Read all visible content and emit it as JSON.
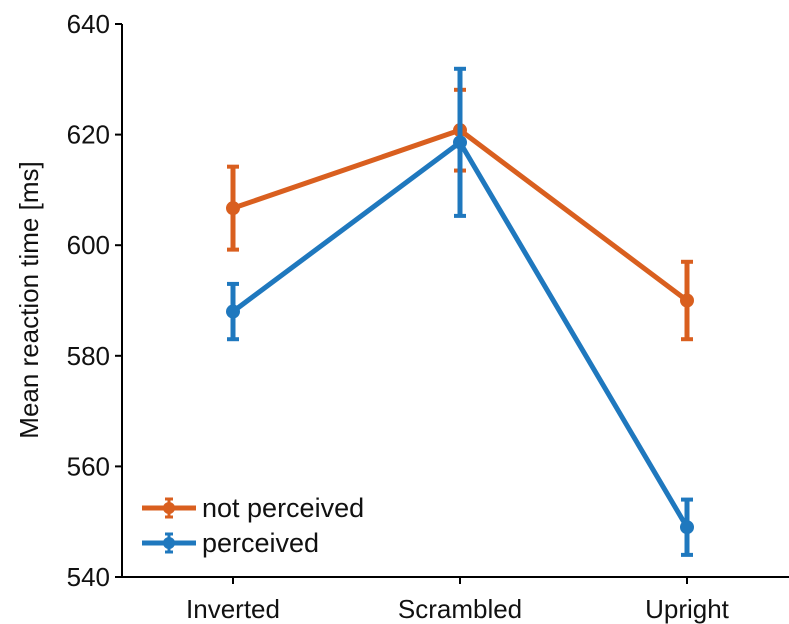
{
  "chart_data": {
    "type": "line",
    "title": "",
    "xlabel": "",
    "ylabel": "Mean reaction time [ms]",
    "categories": [
      "Inverted",
      "Scrambled",
      "Upright"
    ],
    "ylim": [
      540,
      640
    ],
    "yticks": [
      540,
      560,
      580,
      600,
      620,
      640
    ],
    "grid": false,
    "legend_position": "bottom-left",
    "series": [
      {
        "name": "not perceived",
        "color": "#D95F1F",
        "values": [
          606.7,
          620.8,
          590.0
        ],
        "error": [
          7.5,
          7.3,
          7.0
        ]
      },
      {
        "name": "perceived",
        "color": "#1F78BE",
        "values": [
          588.0,
          618.6,
          549.0
        ],
        "error": [
          5.0,
          13.3,
          5.0
        ]
      }
    ]
  }
}
